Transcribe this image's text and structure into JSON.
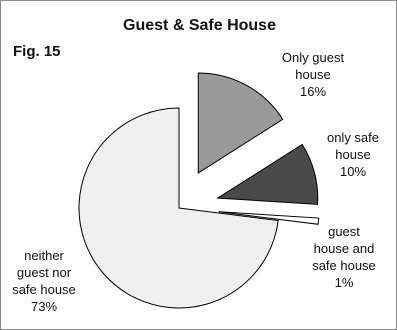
{
  "figure_label": "Fig. 15",
  "chart_data": {
    "type": "pie",
    "title": "Guest & Safe House",
    "slices": [
      {
        "label_lines": [
          "Only guest",
          "house",
          "16%"
        ],
        "value": 16,
        "color": "#9a9a9a"
      },
      {
        "label_lines": [
          "only safe",
          "house",
          "10%"
        ],
        "value": 10,
        "color": "#4a4a4a"
      },
      {
        "label_lines": [
          "guest",
          "house and",
          "safe house",
          "1%"
        ],
        "value": 1,
        "color": "#ffffff"
      },
      {
        "label_lines": [
          "neither",
          "guest nor",
          "safe house",
          "73%"
        ],
        "value": 73,
        "color": "#f0f0f0"
      }
    ]
  }
}
